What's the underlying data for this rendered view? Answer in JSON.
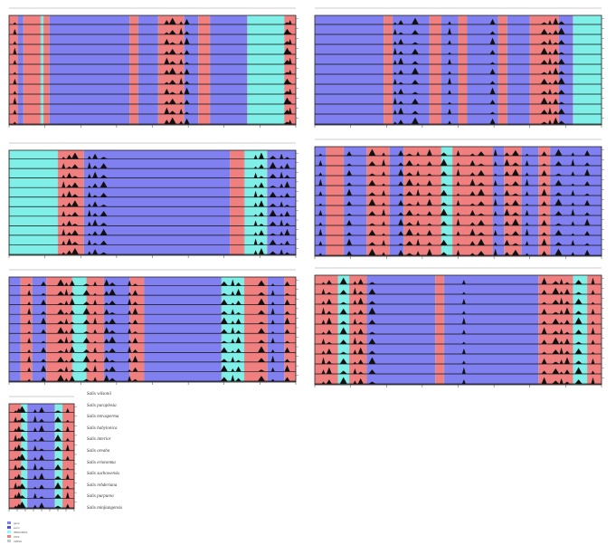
{
  "species": [
    "Salix wilsonii",
    "Salix paraplesia",
    "Salix tetrasperma",
    "Salix babylonica",
    "Salix interior",
    "Salix oreaba",
    "Salix eriotonma",
    "Salix suchowensis",
    "Salix rehderiana",
    "Salix purpurea",
    "Salix minjiangensis"
  ],
  "legend": [
    {
      "label": "gene",
      "color": "#8080f0"
    },
    {
      "label": "exon",
      "color": "#5050d8"
    },
    {
      "label": "tRNA/rRNA",
      "color": "#7fffff"
    },
    {
      "label": "CNS",
      "color": "#f08080"
    },
    {
      "label": "mRNA",
      "color": "#c8c8c8"
    }
  ],
  "colors": {
    "exon": "#8080f0",
    "cns": "#f08080",
    "utr": "#7fefe8",
    "dark_exon": "#5050d8",
    "grey": "#c8a0a0"
  },
  "chart_data": [
    {
      "type": "alignment-panel",
      "tracks": 11,
      "segments": [
        [
          "c",
          0,
          0.03
        ],
        [
          "e",
          0.03,
          0.05
        ],
        [
          "c",
          0.05,
          0.11
        ],
        [
          "u",
          0.11,
          0.12
        ],
        [
          "c",
          0.12,
          0.14
        ],
        [
          "e",
          0.14,
          0.42
        ],
        [
          "c",
          0.42,
          0.45
        ],
        [
          "e",
          0.45,
          0.52
        ],
        [
          "c",
          0.52,
          0.61
        ],
        [
          "e",
          0.61,
          0.66
        ],
        [
          "c",
          0.66,
          0.7
        ],
        [
          "e",
          0.7,
          0.83
        ],
        [
          "u",
          0.83,
          0.96
        ],
        [
          "c",
          0.96,
          1
        ]
      ],
      "dips": [
        0.02,
        0.55,
        0.57,
        0.6,
        0.62,
        0.97,
        0.98
      ]
    },
    {
      "type": "alignment-panel",
      "tracks": 11,
      "segments": [
        [
          "e",
          0,
          0.24
        ],
        [
          "c",
          0.24,
          0.27
        ],
        [
          "e",
          0.27,
          0.4
        ],
        [
          "c",
          0.4,
          0.44
        ],
        [
          "e",
          0.44,
          0.5
        ],
        [
          "c",
          0.5,
          0.53
        ],
        [
          "e",
          0.53,
          0.64
        ],
        [
          "c",
          0.64,
          0.67
        ],
        [
          "e",
          0.67,
          0.75
        ],
        [
          "c",
          0.75,
          0.85
        ],
        [
          "e",
          0.85,
          0.9
        ],
        [
          "u",
          0.9,
          1
        ]
      ],
      "dips": [
        0.28,
        0.3,
        0.35,
        0.47,
        0.62,
        0.8,
        0.82,
        0.84,
        0.86
      ]
    },
    {
      "type": "alignment-panel",
      "tracks": 11,
      "segments": [
        [
          "u",
          0,
          0.17
        ],
        [
          "c",
          0.17,
          0.26
        ],
        [
          "e",
          0.26,
          0.77
        ],
        [
          "c",
          0.77,
          0.82
        ],
        [
          "u",
          0.82,
          0.9
        ],
        [
          "e",
          0.9,
          1
        ]
      ],
      "dips": [
        0.19,
        0.21,
        0.23,
        0.28,
        0.3,
        0.33,
        0.86,
        0.88,
        0.92,
        0.95,
        0.97
      ]
    },
    {
      "type": "alignment-panel",
      "tracks": 11,
      "segments": [
        [
          "e",
          0,
          0.04
        ],
        [
          "c",
          0.04,
          0.1
        ],
        [
          "e",
          0.1,
          0.18
        ],
        [
          "c",
          0.18,
          0.26
        ],
        [
          "e",
          0.26,
          0.31
        ],
        [
          "c",
          0.31,
          0.44
        ],
        [
          "u",
          0.44,
          0.48
        ],
        [
          "c",
          0.48,
          0.62
        ],
        [
          "e",
          0.62,
          0.66
        ],
        [
          "c",
          0.66,
          0.72
        ],
        [
          "e",
          0.72,
          0.78
        ],
        [
          "c",
          0.78,
          0.82
        ],
        [
          "e",
          0.82,
          1
        ]
      ],
      "dips": [
        0.02,
        0.12,
        0.2,
        0.24,
        0.3,
        0.33,
        0.36,
        0.4,
        0.45,
        0.5,
        0.55,
        0.58,
        0.63,
        0.67,
        0.7,
        0.74,
        0.8,
        0.85,
        0.9,
        0.95
      ]
    },
    {
      "type": "alignment-panel",
      "tracks": 11,
      "segments": [
        [
          "e",
          0,
          0.04
        ],
        [
          "c",
          0.04,
          0.08
        ],
        [
          "e",
          0.08,
          0.13
        ],
        [
          "c",
          0.13,
          0.22
        ],
        [
          "u",
          0.22,
          0.27
        ],
        [
          "c",
          0.27,
          0.33
        ],
        [
          "e",
          0.33,
          0.42
        ],
        [
          "c",
          0.42,
          0.47
        ],
        [
          "e",
          0.47,
          0.74
        ],
        [
          "u",
          0.74,
          0.82
        ],
        [
          "c",
          0.82,
          0.9
        ],
        [
          "e",
          0.9,
          0.96
        ],
        [
          "c",
          0.96,
          1
        ]
      ],
      "dips": [
        0.07,
        0.12,
        0.18,
        0.2,
        0.22,
        0.27,
        0.3,
        0.34,
        0.36,
        0.42,
        0.44,
        0.75,
        0.78,
        0.8,
        0.88,
        0.92,
        0.97
      ]
    },
    {
      "type": "alignment-panel",
      "tracks": 11,
      "segments": [
        [
          "c",
          0,
          0.08
        ],
        [
          "u",
          0.08,
          0.12
        ],
        [
          "c",
          0.12,
          0.18
        ],
        [
          "e",
          0.18,
          0.42
        ],
        [
          "c",
          0.42,
          0.45
        ],
        [
          "e",
          0.45,
          0.78
        ],
        [
          "c",
          0.78,
          0.9
        ],
        [
          "u",
          0.9,
          0.95
        ],
        [
          "c",
          0.95,
          1
        ]
      ],
      "dips": [
        0.03,
        0.05,
        0.1,
        0.14,
        0.16,
        0.2,
        0.52,
        0.8,
        0.84,
        0.86,
        0.88,
        0.92,
        0.97
      ]
    },
    {
      "type": "alignment-panel",
      "tracks": 11,
      "segments": [
        [
          "c",
          0,
          0.18
        ],
        [
          "u",
          0.18,
          0.28
        ],
        [
          "e",
          0.28,
          0.7
        ],
        [
          "u",
          0.7,
          0.82
        ],
        [
          "c",
          0.82,
          1
        ]
      ],
      "dips": [
        0.1,
        0.15,
        0.2,
        0.4,
        0.5,
        0.75,
        0.9
      ]
    }
  ]
}
